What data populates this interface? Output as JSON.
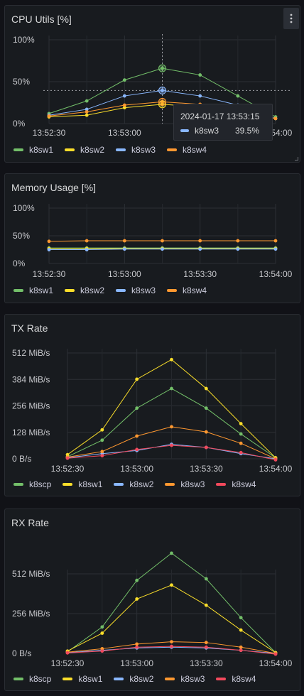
{
  "colors": {
    "green": "#73bf69",
    "yellow": "#fade2a",
    "blue": "#8ab8ff",
    "orange": "#ff9830",
    "red": "#f2495c"
  },
  "panels": [
    {
      "title": "CPU Utils [%]",
      "menu_icon": "kebab-menu-icon",
      "tooltip": {
        "time": "2024-01-17 13:53:15",
        "series": "k8sw3",
        "value": "39.5%"
      },
      "chart_data": {
        "type": "line",
        "x": [
          "13:52:30",
          "13:52:45",
          "13:53:00",
          "13:53:15",
          "13:53:30",
          "13:53:45",
          "13:54:00"
        ],
        "yticks": [
          "100%",
          "50%",
          "0%"
        ],
        "xticks": [
          "13:52:30",
          "13:53:00",
          "13:53:30",
          "13:54:00"
        ],
        "ylim": [
          0,
          100
        ],
        "series": [
          {
            "name": "k8sw1",
            "color": "#73bf69",
            "values": [
              12,
              27,
              52,
              66,
              58,
              33,
              8
            ]
          },
          {
            "name": "k8sw2",
            "color": "#fade2a",
            "values": [
              8,
              10,
              19,
              23,
              20,
              14,
              6
            ]
          },
          {
            "name": "k8sw3",
            "color": "#8ab8ff",
            "values": [
              10,
              17,
              33,
              39.5,
              33,
              22,
              6
            ]
          },
          {
            "name": "k8sw4",
            "color": "#ff9830",
            "values": [
              9,
              14,
              22,
              26,
              23,
              16,
              6
            ]
          }
        ]
      }
    },
    {
      "title": "Memory Usage [%]",
      "chart_data": {
        "type": "line",
        "x": [
          "13:52:30",
          "13:52:45",
          "13:53:00",
          "13:53:15",
          "13:53:30",
          "13:53:45",
          "13:54:00"
        ],
        "yticks": [
          "100%",
          "50%",
          "0%"
        ],
        "xticks": [
          "13:52:30",
          "13:53:00",
          "13:53:30",
          "13:54:00"
        ],
        "ylim": [
          0,
          100
        ],
        "series": [
          {
            "name": "k8sw1",
            "color": "#73bf69",
            "values": [
              28,
              28,
              28,
              28,
              28,
              28,
              28
            ]
          },
          {
            "name": "k8sw2",
            "color": "#fade2a",
            "values": [
              27,
              27,
              27,
              27,
              27,
              27,
              27
            ]
          },
          {
            "name": "k8sw3",
            "color": "#8ab8ff",
            "values": [
              25,
              25,
              26,
              26,
              26,
              26,
              26
            ]
          },
          {
            "name": "k8sw4",
            "color": "#ff9830",
            "values": [
              40,
              41,
              41,
              41,
              41,
              41,
              41
            ]
          }
        ]
      }
    },
    {
      "title": "TX Rate",
      "chart_data": {
        "type": "line",
        "x": [
          "13:52:30",
          "13:52:45",
          "13:53:00",
          "13:53:15",
          "13:53:30",
          "13:53:45",
          "13:54:00"
        ],
        "yticks": [
          "512 MiB/s",
          "384 MiB/s",
          "256 MiB/s",
          "128 MiB/s",
          "0 B/s"
        ],
        "xticks": [
          "13:52:30",
          "13:53:00",
          "13:53:30",
          "13:54:00"
        ],
        "ylim": [
          0,
          512
        ],
        "ylabel_unit": "MiB/s",
        "series": [
          {
            "name": "k8scp",
            "color": "#73bf69",
            "values": [
              10,
              90,
              245,
              340,
              245,
              120,
              5
            ]
          },
          {
            "name": "k8sw1",
            "color": "#fade2a",
            "values": [
              20,
              140,
              385,
              480,
              340,
              170,
              5
            ]
          },
          {
            "name": "k8sw2",
            "color": "#8ab8ff",
            "values": [
              5,
              25,
              40,
              70,
              55,
              25,
              0
            ]
          },
          {
            "name": "k8sw3",
            "color": "#ff9830",
            "values": [
              8,
              35,
              110,
              155,
              130,
              75,
              0
            ]
          },
          {
            "name": "k8sw4",
            "color": "#f2495c",
            "values": [
              3,
              15,
              45,
              65,
              55,
              30,
              -5
            ]
          }
        ]
      }
    },
    {
      "title": "RX Rate",
      "chart_data": {
        "type": "line",
        "x": [
          "13:52:30",
          "13:52:45",
          "13:53:00",
          "13:53:15",
          "13:53:30",
          "13:53:45",
          "13:54:00"
        ],
        "yticks": [
          "512 MiB/s",
          "256 MiB/s",
          "0 B/s"
        ],
        "xticks": [
          "13:52:30",
          "13:53:00",
          "13:53:30",
          "13:54:00"
        ],
        "ylim": [
          0,
          512
        ],
        "ylabel_unit": "MiB/s",
        "series": [
          {
            "name": "k8scp",
            "color": "#73bf69",
            "values": [
              10,
              170,
              470,
              645,
              480,
              230,
              5
            ]
          },
          {
            "name": "k8sw1",
            "color": "#fade2a",
            "values": [
              15,
              130,
              350,
              440,
              310,
              150,
              5
            ]
          },
          {
            "name": "k8sw2",
            "color": "#8ab8ff",
            "values": [
              5,
              20,
              35,
              40,
              35,
              20,
              0
            ]
          },
          {
            "name": "k8sw3",
            "color": "#ff9830",
            "values": [
              8,
              30,
              60,
              75,
              70,
              40,
              0
            ]
          },
          {
            "name": "k8sw4",
            "color": "#f2495c",
            "values": [
              3,
              15,
              40,
              45,
              40,
              20,
              -5
            ]
          }
        ]
      }
    }
  ]
}
